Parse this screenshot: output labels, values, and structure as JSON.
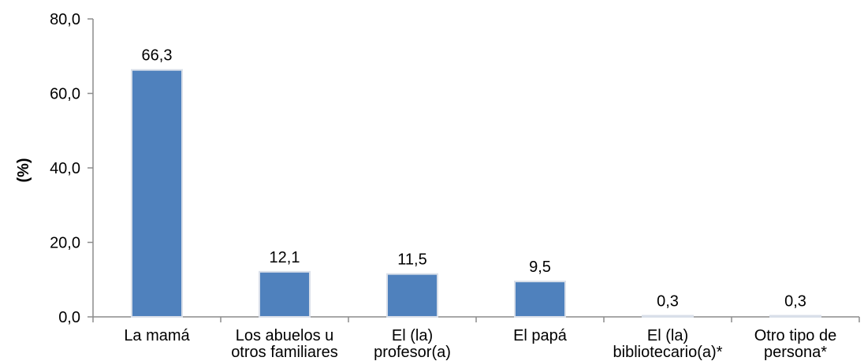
{
  "chart_data": {
    "type": "bar",
    "title": "",
    "xlabel": "",
    "ylabel": "(%)",
    "ylim": [
      0,
      80
    ],
    "y_ticks": [
      "0,0",
      "20,0",
      "40,0",
      "60,0",
      "80,0"
    ],
    "y_tick_values": [
      0,
      20,
      40,
      60,
      80
    ],
    "grid": false,
    "legend": "none",
    "bar_color": "#4f81bd",
    "categories": [
      [
        "La mamá"
      ],
      [
        "Los abuelos u",
        "otros familiares"
      ],
      [
        "El (la)",
        "profesor(a)"
      ],
      [
        "El papá"
      ],
      [
        "El (la)",
        "bibliotecario(a)*"
      ],
      [
        "Otro tipo de",
        "persona*"
      ]
    ],
    "values": [
      66.3,
      12.1,
      11.5,
      9.5,
      0.3,
      0.3
    ],
    "value_labels": [
      "66,3",
      "12,1",
      "11,5",
      "9,5",
      "0,3",
      "0,3"
    ]
  }
}
